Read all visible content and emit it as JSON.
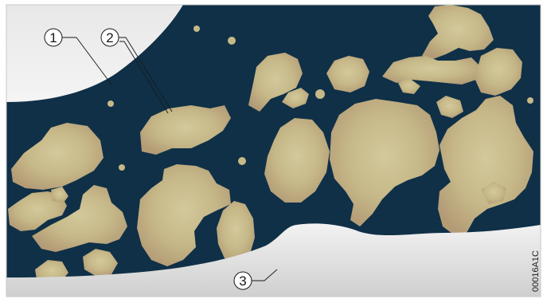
{
  "diagram": {
    "callouts": [
      {
        "id": "1",
        "label": "1"
      },
      {
        "id": "2",
        "label": "2"
      },
      {
        "id": "3",
        "label": "3"
      }
    ],
    "document_code": "00016A1C"
  },
  "colors": {
    "background": "#0f3047",
    "particle_light": "#cfc497",
    "particle_mid": "#bfb07e",
    "particle_edge": "#b59d78",
    "surface_top": "#ececec",
    "surface_bottom": "#d0d0d0",
    "frame": "#c8c8c8"
  }
}
